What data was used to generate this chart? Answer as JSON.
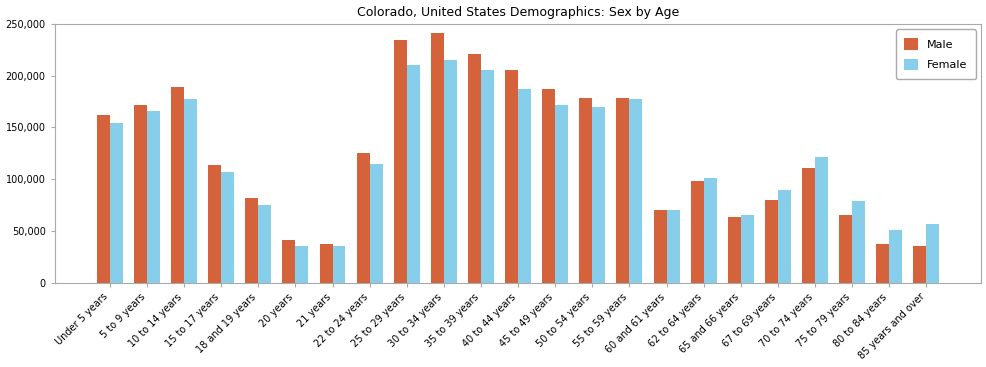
{
  "title": "Colorado, United States Demographics: Sex by Age",
  "categories": [
    "Under 5 years",
    "5 to 9 years",
    "10 to 14 years",
    "15 to 17 years",
    "18 and 19 years",
    "20 years",
    "21 years",
    "22 to 24 years",
    "25 to 29 years",
    "30 to 34 years",
    "35 to 39 years",
    "40 to 44 years",
    "45 to 49 years",
    "50 to 54 years",
    "55 to 59 years",
    "60 and 61 years",
    "62 to 64 years",
    "65 and 66 years",
    "67 to 69 years",
    "70 to 74 years",
    "75 to 79 years",
    "80 to 84 years",
    "85 years and over"
  ],
  "male": [
    162000,
    172000,
    189000,
    114000,
    82000,
    41000,
    37000,
    125000,
    234000,
    241000,
    221000,
    205000,
    187000,
    178000,
    178000,
    70000,
    98000,
    63000,
    80000,
    111000,
    65000,
    37000,
    35000
  ],
  "female": [
    154000,
    166000,
    177000,
    107000,
    75000,
    35000,
    35000,
    115000,
    210000,
    215000,
    205000,
    187000,
    172000,
    170000,
    177000,
    70000,
    101000,
    65000,
    90000,
    121000,
    79000,
    51000,
    57000
  ],
  "male_color": "#D4623A",
  "female_color": "#87CEEB",
  "ylim": [
    0,
    250000
  ],
  "yticks": [
    0,
    50000,
    100000,
    150000,
    200000,
    250000
  ],
  "ytick_labels": [
    "0",
    "50,000",
    "100,000",
    "150,000",
    "200,000",
    "250,000"
  ],
  "bar_width": 0.35,
  "legend_labels": [
    "Male",
    "Female"
  ],
  "title_fontsize": 9,
  "tick_fontsize": 7,
  "figsize": [
    9.87,
    3.67
  ],
  "dpi": 100
}
